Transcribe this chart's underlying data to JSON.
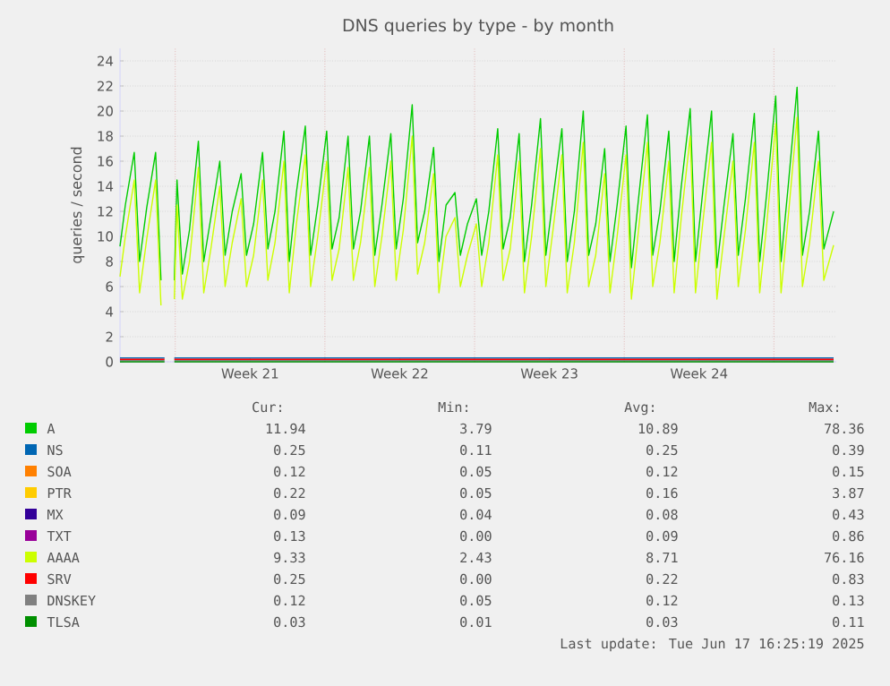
{
  "chart_data": {
    "type": "line",
    "title": "DNS queries by type - by month",
    "ylabel": "queries / second",
    "xlim": [
      "2025-05-16T10:00",
      "2025-06-18T22:00"
    ],
    "ylim": [
      0,
      25
    ],
    "xticks": [
      {
        "value": "2025-05-19",
        "label": null
      },
      {
        "value": "2025-05-22T12:00",
        "label": "Week 21"
      },
      {
        "value": "2025-05-26",
        "label": null
      },
      {
        "value": "2025-05-29T12:00",
        "label": "Week 22"
      },
      {
        "value": "2025-06-02",
        "label": null
      },
      {
        "value": "2025-06-05T12:00",
        "label": "Week 23"
      },
      {
        "value": "2025-06-09",
        "label": null
      },
      {
        "value": "2025-06-12T12:00",
        "label": "Week 24"
      },
      {
        "value": "2025-06-16",
        "label": null
      }
    ],
    "yticks": [
      0,
      2,
      4,
      6,
      8,
      10,
      12,
      14,
      16,
      18,
      20,
      22,
      24
    ],
    "grid": true,
    "legend": "bottom",
    "x": [
      "2025-05-16T10:00",
      "2025-05-16T16:00",
      "2025-05-17T02:00",
      "2025-05-17T08:00",
      "2025-05-17T16:00",
      "2025-05-18T02:00",
      "2025-05-18T08:00",
      "2025-05-18T14:00",
      "2025-05-18T23:00",
      "2025-05-19T02:00",
      "2025-05-19T08:00",
      "2025-05-19T16:00",
      "2025-05-20T02:00",
      "2025-05-20T08:00",
      "2025-05-20T16:00",
      "2025-05-21T02:00",
      "2025-05-21T08:00",
      "2025-05-21T16:00",
      "2025-05-22T02:00",
      "2025-05-22T08:00",
      "2025-05-22T16:00",
      "2025-05-23T02:00",
      "2025-05-23T08:00",
      "2025-05-23T16:00",
      "2025-05-24T02:00",
      "2025-05-24T08:00",
      "2025-05-24T16:00",
      "2025-05-25T02:00",
      "2025-05-25T08:00",
      "2025-05-25T16:00",
      "2025-05-26T02:00",
      "2025-05-26T08:00",
      "2025-05-26T16:00",
      "2025-05-27T02:00",
      "2025-05-27T08:00",
      "2025-05-27T16:00",
      "2025-05-28T02:00",
      "2025-05-28T08:00",
      "2025-05-28T16:00",
      "2025-05-29T02:00",
      "2025-05-29T08:00",
      "2025-05-29T16:00",
      "2025-05-30T02:00",
      "2025-05-30T08:00",
      "2025-05-30T16:00",
      "2025-05-31T02:00",
      "2025-05-31T08:00",
      "2025-05-31T16:00",
      "2025-06-01T02:00",
      "2025-06-01T08:00",
      "2025-06-01T16:00",
      "2025-06-02T02:00",
      "2025-06-02T08:00",
      "2025-06-02T16:00",
      "2025-06-03T02:00",
      "2025-06-03T08:00",
      "2025-06-03T16:00",
      "2025-06-04T02:00",
      "2025-06-04T08:00",
      "2025-06-04T16:00",
      "2025-06-05T02:00",
      "2025-06-05T08:00",
      "2025-06-05T16:00",
      "2025-06-06T02:00",
      "2025-06-06T08:00",
      "2025-06-06T16:00",
      "2025-06-07T02:00",
      "2025-06-07T08:00",
      "2025-06-07T16:00",
      "2025-06-08T02:00",
      "2025-06-08T08:00",
      "2025-06-08T16:00",
      "2025-06-09T02:00",
      "2025-06-09T08:00",
      "2025-06-09T16:00",
      "2025-06-10T02:00",
      "2025-06-10T08:00",
      "2025-06-10T16:00",
      "2025-06-11T02:00",
      "2025-06-11T08:00",
      "2025-06-11T16:00",
      "2025-06-12T02:00",
      "2025-06-12T08:00",
      "2025-06-12T16:00",
      "2025-06-13T02:00",
      "2025-06-13T08:00",
      "2025-06-13T16:00",
      "2025-06-14T02:00",
      "2025-06-14T08:00",
      "2025-06-14T16:00",
      "2025-06-15T02:00",
      "2025-06-15T08:00",
      "2025-06-15T16:00",
      "2025-06-16T02:00",
      "2025-06-16T08:00",
      "2025-06-16T16:00",
      "2025-06-17T02:00",
      "2025-06-17T08:00",
      "2025-06-17T16:00",
      "2025-06-18T02:00",
      "2025-06-18T08:00",
      "2025-06-18T19:00"
    ],
    "series": [
      {
        "name": "A",
        "color": "#00cc00",
        "values": [
          9.2,
          12.5,
          16.7,
          8,
          12.3,
          16.7,
          6.5,
          null,
          6.5,
          14.5,
          7,
          10.5,
          17.6,
          8,
          11.5,
          16,
          8.5,
          12,
          15,
          8.5,
          11,
          16.7,
          9,
          12,
          18.4,
          8,
          13.5,
          18.8,
          8.5,
          12.5,
          18.4,
          9,
          11.5,
          18,
          9,
          12,
          18,
          8.5,
          12.5,
          18.2,
          9,
          13,
          20.5,
          9.5,
          12,
          17.1,
          8,
          12.5,
          13.5,
          8.5,
          11,
          13,
          8.5,
          12,
          18.6,
          9,
          11.5,
          18.2,
          8,
          12.5,
          19.4,
          8.5,
          13,
          18.6,
          8,
          12,
          20,
          8.5,
          11,
          17,
          8,
          12.5,
          18.8,
          7.5,
          13,
          19.7,
          8.5,
          12,
          18.4,
          8,
          14,
          20.2,
          8,
          13.5,
          20,
          7.5,
          12.5,
          18.2,
          8.5,
          13,
          19.8,
          8,
          13.5,
          21.2,
          8,
          14,
          21.9,
          8.5,
          12,
          18.4,
          9,
          12
        ]
      },
      {
        "name": "NS",
        "color": "#0066b3",
        "x": [
          "2025-05-16T10:00",
          "2025-05-18T12:00",
          "2025-05-18T14:00",
          "2025-05-18T23:00",
          "2025-06-18T19:00"
        ],
        "values": [
          0.3,
          0.3,
          null,
          0.3,
          0.3
        ]
      },
      {
        "name": "SOA",
        "color": "#ff8000",
        "values": [
          null,
          null,
          null,
          null,
          null,
          null,
          null,
          null,
          null,
          null,
          null,
          null,
          null,
          null,
          null,
          null,
          null,
          null,
          null,
          null,
          null,
          null,
          null,
          null,
          null,
          null,
          null,
          null,
          null,
          null,
          null,
          null,
          null,
          null,
          null,
          null,
          null,
          null,
          null,
          null,
          null,
          null,
          null,
          null,
          null,
          null,
          null,
          null,
          null,
          null,
          null,
          null,
          null,
          null,
          null,
          null,
          null,
          null,
          null,
          null,
          null,
          null,
          null,
          null,
          null,
          null,
          null,
          null,
          null,
          null,
          null,
          null,
          null,
          null,
          null,
          null,
          null,
          null,
          null,
          null,
          null,
          null,
          null,
          null,
          null,
          null,
          null,
          null,
          null,
          null,
          null,
          null,
          null,
          null,
          null,
          null,
          null,
          null,
          null,
          null,
          null,
          null
        ]
      },
      {
        "name": "PTR",
        "color": "#ffcc00",
        "values": [
          null,
          null,
          null,
          null,
          null,
          null,
          null,
          null,
          null,
          null,
          null,
          null,
          null,
          null,
          null,
          null,
          null,
          null,
          null,
          null,
          null,
          null,
          null,
          null,
          null,
          null,
          null,
          null,
          null,
          null,
          null,
          null,
          null,
          null,
          null,
          null,
          null,
          null,
          null,
          null,
          null,
          null,
          null,
          null,
          null,
          null,
          null,
          null,
          null,
          null,
          null,
          null,
          null,
          null,
          null,
          null,
          null,
          null,
          null,
          null,
          null,
          null,
          null,
          null,
          null,
          null,
          null,
          null,
          null,
          null,
          null,
          null,
          null,
          null,
          null,
          null,
          null,
          null,
          null,
          null,
          null,
          null,
          null,
          null,
          null,
          null,
          null,
          null,
          null,
          null,
          null,
          null,
          null,
          null,
          null,
          null,
          null,
          null,
          null,
          null,
          null,
          null
        ]
      },
      {
        "name": "MX",
        "color": "#330099",
        "values": [
          null,
          null,
          null,
          null,
          null,
          null,
          null,
          null,
          null,
          null,
          null,
          null,
          null,
          null,
          null,
          null,
          null,
          null,
          null,
          null,
          null,
          null,
          null,
          null,
          null,
          null,
          null,
          null,
          null,
          null,
          null,
          null,
          null,
          null,
          null,
          null,
          null,
          null,
          null,
          null,
          null,
          null,
          null,
          null,
          null,
          null,
          null,
          null,
          null,
          null,
          null,
          null,
          null,
          null,
          null,
          null,
          null,
          null,
          null,
          null,
          null,
          null,
          null,
          null,
          null,
          null,
          null,
          null,
          null,
          null,
          null,
          null,
          null,
          null,
          null,
          null,
          null,
          null,
          null,
          null,
          null,
          null,
          null,
          null,
          null,
          null,
          null,
          null,
          null,
          null,
          null,
          null,
          null,
          null,
          null,
          null,
          null,
          null,
          null,
          null,
          null,
          null
        ]
      },
      {
        "name": "TXT",
        "color": "#990099",
        "values": [
          null,
          null,
          null,
          null,
          null,
          null,
          null,
          null,
          null,
          null,
          null,
          null,
          null,
          null,
          null,
          null,
          null,
          null,
          null,
          null,
          null,
          null,
          null,
          null,
          null,
          null,
          null,
          null,
          null,
          null,
          null,
          null,
          null,
          null,
          null,
          null,
          null,
          null,
          null,
          null,
          null,
          null,
          null,
          null,
          null,
          null,
          null,
          null,
          null,
          null,
          null,
          null,
          null,
          null,
          null,
          null,
          null,
          null,
          null,
          null,
          null,
          null,
          null,
          null,
          null,
          null,
          null,
          null,
          null,
          null,
          null,
          null,
          null,
          null,
          null,
          null,
          null,
          null,
          null,
          null,
          null,
          null,
          null,
          null,
          null,
          null,
          null,
          null,
          null,
          null,
          null,
          null,
          null,
          null,
          null,
          null,
          null,
          null,
          null,
          null,
          null,
          null
        ]
      },
      {
        "name": "AAAA",
        "color": "#ccff00",
        "values": [
          6.8,
          10,
          14.5,
          5.5,
          9.8,
          14.5,
          4.5,
          null,
          5,
          12.5,
          5,
          8,
          15.5,
          5.5,
          9,
          14,
          6,
          9.5,
          13,
          6,
          8.5,
          14.5,
          6.5,
          9.5,
          16,
          5.5,
          11,
          16.5,
          6,
          10,
          16,
          6.5,
          9,
          15.5,
          6.5,
          9.5,
          15.5,
          6,
          10,
          16,
          6.5,
          10.5,
          18,
          7,
          9.5,
          15,
          5.5,
          10,
          11.5,
          6,
          8.5,
          11,
          6,
          9.5,
          16.5,
          6.5,
          9,
          16,
          5.5,
          10,
          17,
          6,
          10.5,
          16.5,
          5.5,
          9.5,
          17.5,
          6,
          8.5,
          15,
          5.5,
          10,
          16.5,
          5,
          10.5,
          17.5,
          6,
          9.5,
          16,
          5.5,
          11.5,
          18,
          5.5,
          11,
          17.5,
          5,
          10,
          16,
          6,
          10.5,
          17.5,
          5.5,
          11,
          19,
          5.5,
          11.5,
          19.5,
          6,
          9.5,
          16,
          6.5,
          9.3
        ]
      },
      {
        "name": "SRV",
        "color": "#ff0000",
        "x": [
          "2025-05-16T10:00",
          "2025-05-18T12:00",
          "2025-05-18T14:00",
          "2025-05-18T23:00",
          "2025-06-18T19:00"
        ],
        "values": [
          0.2,
          0.2,
          null,
          0.2,
          0.2
        ]
      },
      {
        "name": "DNSKEY",
        "color": "#808080",
        "x": [
          "2025-05-16T10:00",
          "2025-05-18T12:00",
          "2025-05-18T14:00",
          "2025-05-18T23:00",
          "2025-06-18T19:00"
        ],
        "values": [
          0.1,
          0.1,
          null,
          0.1,
          0.1
        ]
      },
      {
        "name": "TLSA",
        "color": "#008f00",
        "x": [
          "2025-05-16T10:00",
          "2025-05-18T12:00",
          "2025-05-18T14:00",
          "2025-05-18T23:00",
          "2025-06-18T19:00"
        ],
        "values": [
          0.0,
          0.0,
          null,
          0.0,
          0.0
        ]
      }
    ],
    "annotations": [
      "Cur:",
      "Min:",
      "Avg:",
      "Max:",
      "11.94",
      "3.79",
      "10.89",
      "78.36",
      "0.25",
      "0.11",
      "0.25",
      "0.39",
      "0.12",
      "0.05",
      "0.12",
      "0.15",
      "0.22",
      "0.05",
      "0.16",
      "3.87",
      "0.09",
      "0.04",
      "0.08",
      "0.43",
      "0.13",
      "0.00",
      "0.09",
      "0.86",
      "9.33",
      "2.43",
      "8.71",
      "76.16",
      "0.25",
      "0.00",
      "0.22",
      "0.83",
      "0.12",
      "0.05",
      "0.12",
      "0.13",
      "0.03",
      "0.01",
      "0.03",
      "0.11",
      "Last update: Tue Jun 17 16:25:19 2025"
    ]
  }
}
